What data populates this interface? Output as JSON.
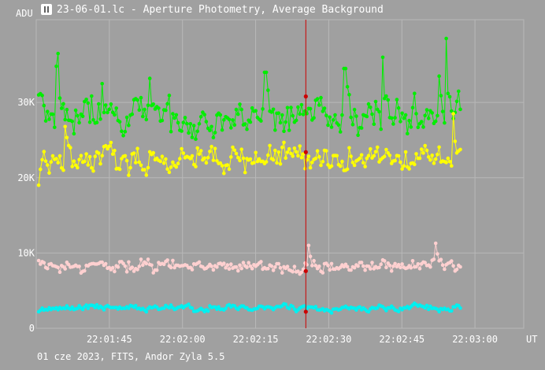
{
  "window": {
    "title": "23-06-01.lc - Aperture Photometry, Average Background",
    "icon": "app-icon"
  },
  "footer": "01 cze 2023, FITS, Andor Zyla 5.5",
  "chart_data": {
    "type": "line",
    "title": "23-06-01.lc - Aperture Photometry, Average Background",
    "ylabel": "ADU",
    "xlabel": "UT",
    "ylim": [
      0,
      41000
    ],
    "xlim": [
      "22:01:30",
      "22:03:10"
    ],
    "y_ticks": [
      0,
      10000,
      20000,
      30000
    ],
    "y_tick_labels": [
      "0",
      "10K",
      "20K",
      "30K"
    ],
    "x_ticks": [
      "22:01:45",
      "22:02:00",
      "22:02:15",
      "22:02:30",
      "22:02:45",
      "22:03:00"
    ],
    "grid": true,
    "cursor_time": "22:02:25.3",
    "cursor_values": [
      30800,
      23400,
      7600,
      2200
    ],
    "series": [
      {
        "color": "#00ee00",
        "start": 31000,
        "mean": 28000,
        "spread": 2600,
        "spikes": [
          [
            "22:01:34.5",
            36500
          ],
          [
            "22:01:34.1",
            34800
          ],
          [
            "22:01:43.5",
            32500
          ],
          [
            "22:01:53.3",
            33200
          ],
          [
            "22:02:17.0",
            34000
          ],
          [
            "22:02:33.3",
            34500
          ],
          [
            "22:02:41.0",
            36000
          ],
          [
            "22:02:52.6",
            33500
          ],
          [
            "22:02:54.1",
            38500
          ]
        ]
      },
      {
        "color": "#ffff00",
        "start": 19000,
        "mean": 22600,
        "spread": 1800,
        "spikes": [
          [
            "22:01:36.0",
            26800
          ],
          [
            "22:02:55.5",
            28500
          ]
        ]
      },
      {
        "color": "#ffd0d0",
        "start": 9000,
        "mean": 8300,
        "spread": 900,
        "spikes": [
          [
            "22:02:26.0",
            11000
          ],
          [
            "22:02:52.0",
            11300
          ]
        ]
      },
      {
        "color": "#00f0f0",
        "start": 2200,
        "mean": 2700,
        "spread": 450,
        "spikes": []
      }
    ],
    "x_start": "22:01:30.5",
    "x_end": "22:02:57.0",
    "n_points": 240
  }
}
